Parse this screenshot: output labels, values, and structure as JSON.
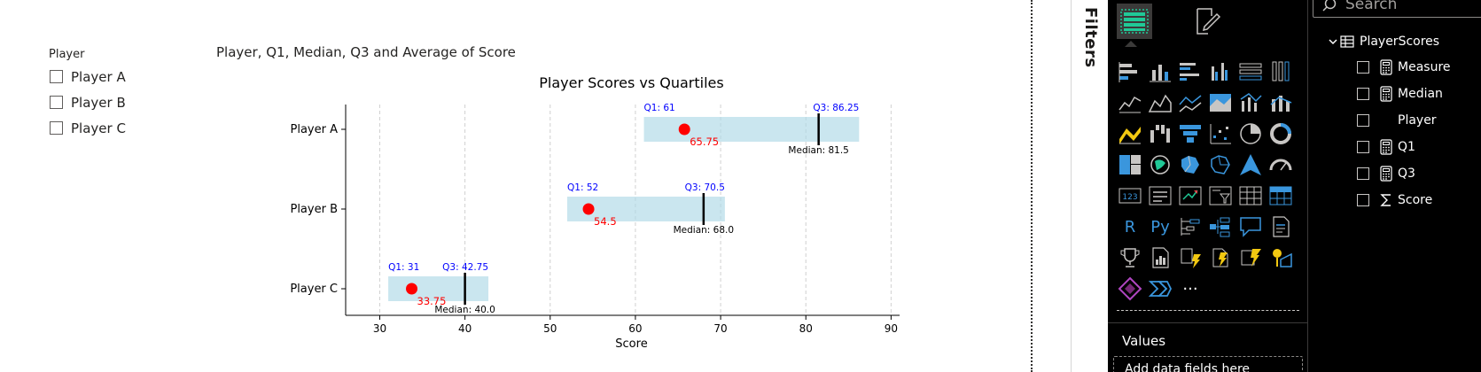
{
  "slicer": {
    "title": "Player",
    "items": [
      {
        "label": "Player A",
        "checked": false
      },
      {
        "label": "Player B",
        "checked": false
      },
      {
        "label": "Player C",
        "checked": false
      }
    ]
  },
  "visual": {
    "header_title": "Player, Q1, Median, Q3 and Average of Score"
  },
  "chart_data": {
    "type": "bar",
    "title": "Player Scores vs Quartiles",
    "xlabel": "Score",
    "ylabel": "",
    "xlim": [
      26,
      91
    ],
    "xticks": [
      30,
      40,
      50,
      60,
      70,
      80,
      90
    ],
    "grid": "vertical dashed",
    "categories": [
      "Player A",
      "Player B",
      "Player C"
    ],
    "series": [
      {
        "name": "Q1",
        "values": [
          61,
          52,
          31
        ]
      },
      {
        "name": "Q3",
        "values": [
          86.25,
          70.5,
          42.75
        ]
      },
      {
        "name": "Median",
        "values": [
          81.5,
          68.0,
          40.0
        ]
      },
      {
        "name": "Average",
        "values": [
          65.75,
          54.5,
          33.75
        ]
      }
    ],
    "labels": {
      "q1": [
        "Q1: 61",
        "Q1: 52",
        "Q1: 31"
      ],
      "q3": [
        "Q3: 86.25",
        "Q3: 70.5",
        "Q3: 42.75"
      ],
      "median": [
        "Median: 81.5",
        "Median: 68.0",
        "Median: 40.0"
      ],
      "average": [
        "65.75",
        "54.5",
        "33.75"
      ]
    },
    "colors": {
      "box": "#add8e6",
      "average": "#ff0000",
      "median": "#000000",
      "q_label": "#0000ff"
    }
  },
  "filters_pane": {
    "label": "Filters"
  },
  "viz_pane": {
    "tabs": [
      {
        "name": "build-visual-icon",
        "active": true
      },
      {
        "name": "format-visual-icon",
        "active": false
      }
    ],
    "icons": [
      "stacked-bar-icon",
      "stacked-column-icon",
      "clustered-bar-icon",
      "clustered-column-icon",
      "100-stacked-bar-icon",
      "100-stacked-column-icon",
      "line-chart-icon",
      "area-chart-icon",
      "stacked-area-icon",
      "100-stacked-area-icon",
      "line-clustered-column-icon",
      "line-stacked-column-icon",
      "ribbon-chart-icon",
      "waterfall-icon",
      "funnel-icon",
      "scatter-icon",
      "pie-icon",
      "donut-icon",
      "treemap-icon",
      "map-icon",
      "filled-map-icon",
      "shape-map-icon",
      "azure-map-icon",
      "gauge-icon",
      "card-icon",
      "multi-row-card-icon",
      "kpi-icon",
      "slicer-icon",
      "table-icon",
      "matrix-icon",
      "r-visual-icon",
      "python-visual-icon",
      "key-influencers-icon",
      "decomposition-tree-icon",
      "qa-icon",
      "narrative-icon",
      "goals-icon",
      "paginated-report-icon",
      "power-apps-icon",
      "power-automate-icon",
      "power-automate-2-icon",
      "arcgis-icon",
      "power-apps-2-icon",
      "power-automate-3-icon",
      "more-visuals-icon"
    ],
    "r_label": "R",
    "py_label": "Py",
    "more_label": "···",
    "values_label": "Values",
    "add_fields_label": "Add data fields here"
  },
  "data_pane": {
    "search_placeholder": "Search",
    "table_name": "PlayerScores",
    "fields": [
      {
        "name": "Measure",
        "icon": "calculator-icon"
      },
      {
        "name": "Median",
        "icon": "calculator-icon"
      },
      {
        "name": "Player",
        "icon": "none"
      },
      {
        "name": "Q1",
        "icon": "calculator-icon"
      },
      {
        "name": "Q3",
        "icon": "calculator-icon"
      },
      {
        "name": "Score",
        "icon": "sigma-icon"
      }
    ]
  }
}
